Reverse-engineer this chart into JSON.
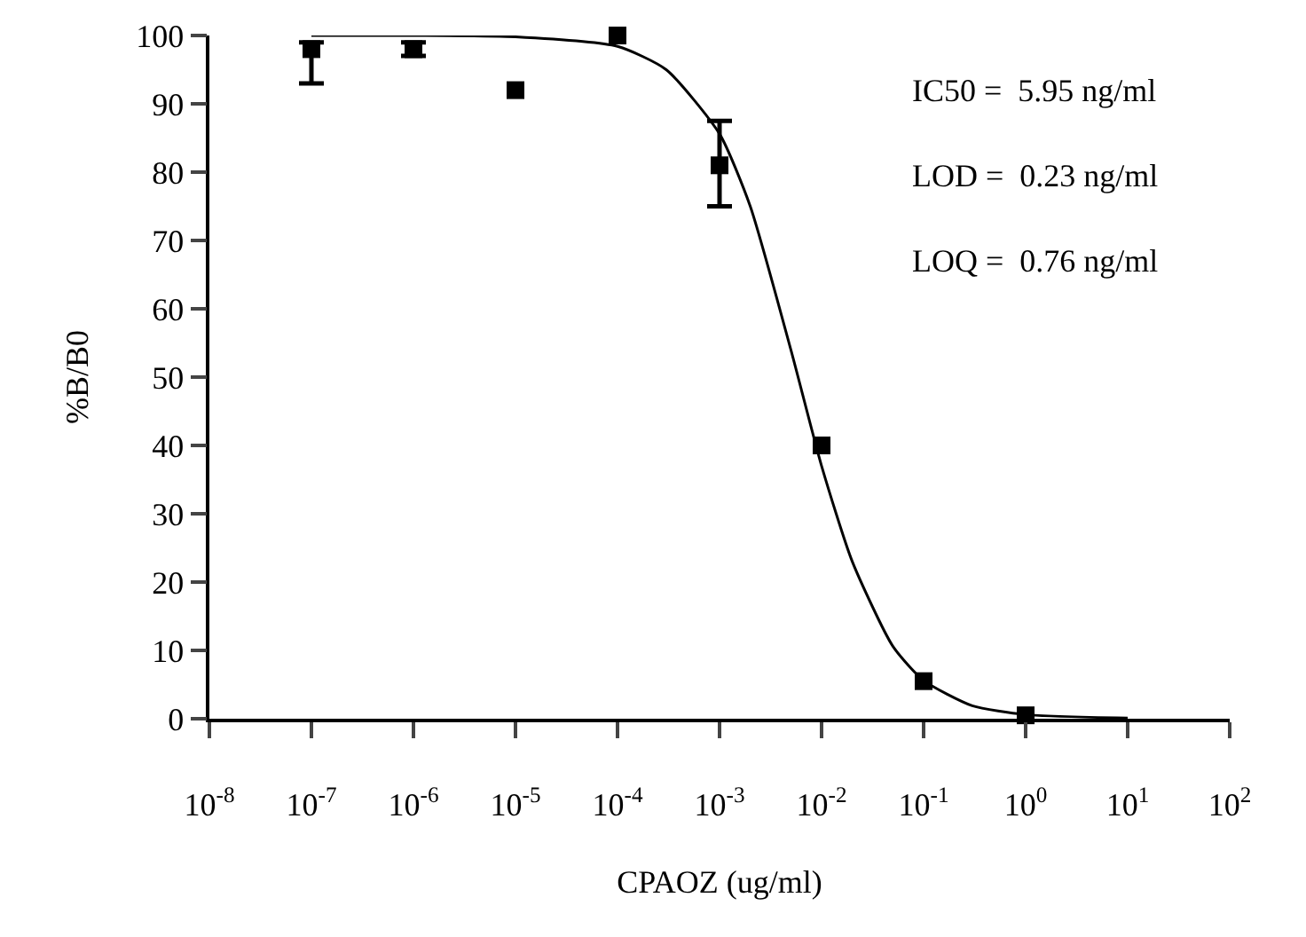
{
  "chart_data": {
    "type": "scatter",
    "xlabel": "CPAOZ (ug/ml)",
    "ylabel": "%B/B0",
    "log": "x",
    "grid": false,
    "xlim": [
      1e-08,
      100
    ],
    "xticks": [
      {
        "value": 1e-08,
        "label": "10$^{-8}$"
      },
      {
        "value": 1e-07,
        "label": "10$^{-7}$"
      },
      {
        "value": 1e-06,
        "label": "10$^{-6}$"
      },
      {
        "value": 1e-05,
        "label": "10$^{-5}$"
      },
      {
        "value": 0.0001,
        "label": "10$^{-4}$"
      },
      {
        "value": 0.001,
        "label": "10$^{-3}$"
      },
      {
        "value": 0.01,
        "label": "10$^{-2}$"
      },
      {
        "value": 0.1,
        "label": "10$^{-1}$"
      },
      {
        "value": 1,
        "label": "10$^{0}$"
      },
      {
        "value": 10,
        "label": "10$^{1}$"
      },
      {
        "value": 100,
        "label": "10$^{2}$"
      }
    ],
    "ylim": [
      0,
      100
    ],
    "yticks": [
      0,
      10,
      20,
      30,
      40,
      50,
      60,
      70,
      80,
      90,
      100
    ],
    "x": [
      1e-07,
      1e-06,
      1e-05,
      0.0001,
      0.001,
      0.01,
      0.1,
      1
    ],
    "series": [
      {
        "type": "scatter",
        "marker": "square",
        "color": "#000000",
        "values": [
          98,
          98,
          92,
          100,
          81,
          40,
          5.5,
          0.5
        ],
        "errors": [
          [
            93,
            99
          ],
          [
            97,
            99
          ],
          null,
          null,
          [
            75,
            87.5
          ],
          null,
          null,
          null
        ]
      },
      {
        "type": "line",
        "marker": "none",
        "line_style": "solid",
        "color": "#000000",
        "x": [
          1e-07,
          1e-06,
          1e-05,
          0.0001,
          0.0003,
          0.001,
          0.002,
          0.005,
          0.01,
          0.02,
          0.05,
          0.1,
          0.3,
          1,
          10
        ],
        "values": [
          100,
          100,
          99.8,
          98.4,
          95,
          85.6,
          75,
          54,
          37,
          23,
          10.6,
          5.6,
          1.9,
          0.6,
          0.1
        ]
      }
    ],
    "annotations": [
      "IC50 =  5.95 ng/ml",
      "LOD =  0.23 ng/ml",
      "LOQ =  0.76 ng/ml"
    ]
  }
}
